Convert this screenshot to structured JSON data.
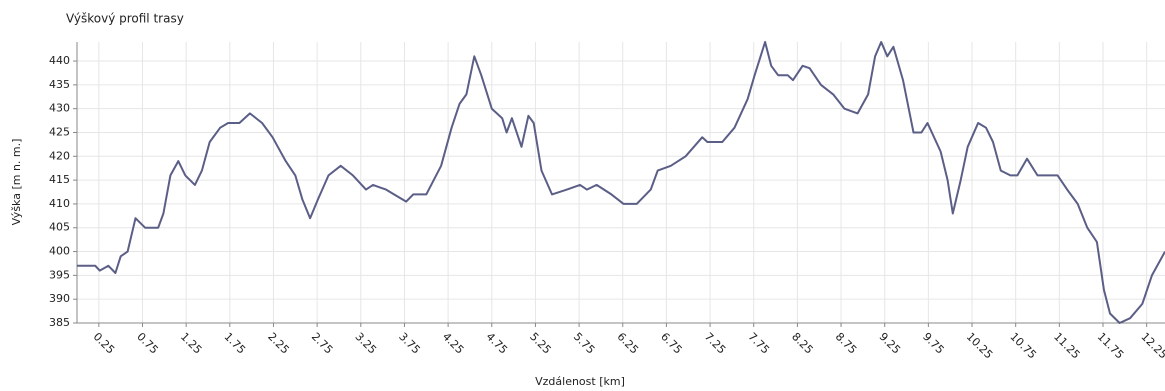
{
  "chart_data": {
    "type": "line",
    "title": "Výškový profil trasy",
    "x_label": "Vzdálenost [km]",
    "y_label": "Výška [m n. m.]",
    "x": [
      0,
      0.21,
      0.26,
      0.36,
      0.44,
      0.5,
      0.58,
      0.67,
      0.78,
      0.93,
      0.99,
      1.07,
      1.16,
      1.24,
      1.35,
      1.43,
      1.52,
      1.64,
      1.73,
      1.86,
      1.98,
      2.12,
      2.24,
      2.39,
      2.5,
      2.58,
      2.67,
      2.76,
      2.88,
      3.02,
      3.16,
      3.31,
      3.39,
      3.54,
      3.63,
      3.77,
      3.85,
      4.0,
      4.17,
      4.29,
      4.38,
      4.46,
      4.55,
      4.63,
      4.75,
      4.87,
      4.92,
      4.98,
      5.09,
      5.17,
      5.23,
      5.32,
      5.44,
      5.61,
      5.76,
      5.84,
      5.95,
      6.12,
      6.26,
      6.41,
      6.57,
      6.65,
      6.8,
      6.97,
      7.16,
      7.22,
      7.39,
      7.53,
      7.68,
      7.76,
      7.88,
      7.95,
      8.03,
      8.14,
      8.2,
      8.31,
      8.39,
      8.52,
      8.66,
      8.79,
      8.94,
      9.06,
      9.14,
      9.21,
      9.28,
      9.35,
      9.46,
      9.58,
      9.67,
      9.74,
      9.89,
      9.97,
      10.03,
      10.12,
      10.2,
      10.32,
      10.41,
      10.49,
      10.58,
      10.69,
      10.77,
      10.88,
      11.0,
      11.23,
      11.34,
      11.46,
      11.57,
      11.68,
      11.76,
      11.83,
      11.94,
      12.06,
      12.2,
      12.31,
      12.46
    ],
    "series": [
      {
        "name": "Výška",
        "color": "#5b5e86",
        "values": [
          397,
          397,
          396,
          397,
          395.5,
          399,
          400,
          407,
          405,
          405,
          408,
          416,
          419,
          416,
          414,
          417,
          423,
          426,
          427,
          427,
          429,
          427,
          424,
          419,
          416,
          411,
          407,
          411,
          416,
          418,
          416,
          413,
          414,
          413,
          412,
          410.5,
          412,
          412,
          418,
          426,
          431,
          433,
          441,
          437,
          430,
          428,
          425,
          428,
          422,
          428.5,
          427,
          417,
          412,
          413,
          414,
          413,
          414,
          412,
          410,
          410,
          413,
          417,
          418,
          420,
          424,
          423,
          423,
          426,
          432,
          437,
          444,
          439,
          437,
          437,
          436,
          439,
          438.5,
          435,
          433,
          430,
          429,
          433,
          441,
          444,
          441,
          443,
          436,
          425,
          425,
          427,
          421,
          415,
          408,
          415,
          422,
          427,
          426,
          423,
          417,
          416,
          416,
          419.5,
          416,
          416,
          413,
          410,
          405,
          402,
          392,
          387,
          385,
          386,
          389,
          395,
          400
        ]
      }
    ],
    "xlim": [
      0,
      12.46
    ],
    "ylim": [
      385,
      444
    ],
    "xticks": [
      0.25,
      0.75,
      1.25,
      1.75,
      2.25,
      2.75,
      3.25,
      3.75,
      4.25,
      4.75,
      5.25,
      5.75,
      6.25,
      6.75,
      7.25,
      7.75,
      8.25,
      8.75,
      9.25,
      9.75,
      10.25,
      10.75,
      11.25,
      11.75,
      12.25
    ],
    "yticks": [
      385,
      390,
      395,
      400,
      405,
      410,
      415,
      420,
      425,
      430,
      435,
      440
    ],
    "grid": true
  }
}
